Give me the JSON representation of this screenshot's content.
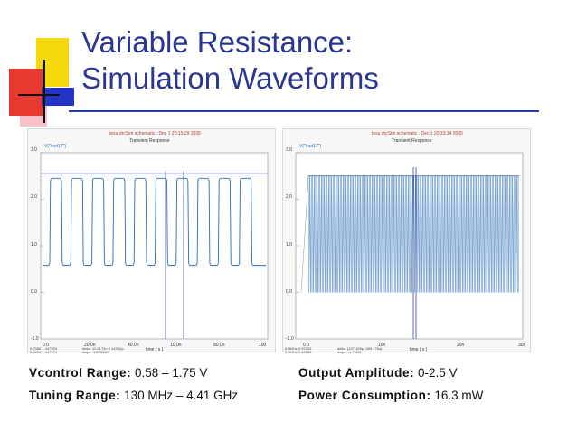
{
  "slide": {
    "title_line1": "Variable Resistance:",
    "title_line2": "Simulation Waveforms"
  },
  "left_panel": {
    "header": "tesu drcSim schematic : Dec 1 20:15:29 2005",
    "subtitle": "Transient Response",
    "legend": "V(\"/net17\")",
    "y_ticks": [
      "3.0",
      "2.0",
      "1.0",
      "0.0",
      "-1.0"
    ],
    "x_ticks": [
      "0.0",
      "20.0n",
      "40.0n",
      "10.0n",
      "80.0n",
      "100"
    ],
    "xlabel": "time ( s )",
    "footer": [
      "0.7385 1.447903",
      "0.0224 1.447973",
      "delta: 12.8173n 0.1452(s)",
      "slope: 3.60331M"
    ],
    "periods": 10,
    "y_low": 0.58,
    "y_high": 2.45,
    "marker_x": [
      "35.0n",
      "39.0n"
    ],
    "color": "#2a6bb5"
  },
  "right_panel": {
    "header": "tesu drcSim schematic : Dec 1 20:33:14 2005",
    "subtitle": "Transient Response",
    "legend": "V(\"/net17\")",
    "y_ticks": [
      "3.0",
      "2.0",
      "1.0",
      "0.0",
      "-1.0"
    ],
    "x_ticks": [
      "0.0",
      "10n",
      "20n",
      "30n"
    ],
    "xlabel": "time ( s )",
    "footer": [
      "0.8MHz 0.97333",
      "0.9MHz 1.42383",
      "delta: (227.198p -389.776u)",
      "slope: -1.7M08"
    ],
    "y_low": 0.0,
    "y_high": 2.5,
    "color": "#2a6bb5"
  },
  "specs": {
    "vcontrol_label": "Vcontrol Range:",
    "vcontrol_value": "0.58 – 1.75 V",
    "tuning_label": "Tuning Range:",
    "tuning_value": "130 MHz – 4.41 GHz",
    "amplitude_label": "Output Amplitude:",
    "amplitude_value": "0-2.5 V",
    "power_label": "Power Consumption:",
    "power_value": "16.3 mW"
  }
}
